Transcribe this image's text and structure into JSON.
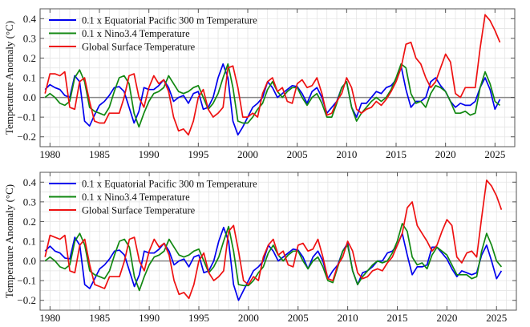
{
  "chart_data": [
    {
      "type": "line",
      "panel": "top",
      "ylabel": "Temperature Anomaly (°C)",
      "xlabel": "",
      "xlim": [
        1979,
        2027
      ],
      "ylim": [
        -0.25,
        0.45
      ],
      "grid": true,
      "legend_placement": "top-left",
      "xticks": [
        {
          "v": 1980,
          "label": "1980"
        },
        {
          "v": 1985,
          "label": "1985"
        },
        {
          "v": 1990,
          "label": "1990"
        },
        {
          "v": 1995,
          "label": "1995"
        },
        {
          "v": 2000,
          "label": "2000"
        },
        {
          "v": 2005,
          "label": "2005"
        },
        {
          "v": 2010,
          "label": "2010"
        },
        {
          "v": 2015,
          "label": "2015"
        },
        {
          "v": 2020,
          "label": "2020"
        },
        {
          "v": 2025,
          "label": "2025"
        }
      ],
      "yticks": [
        {
          "v": 0.4,
          "label": "0.4"
        },
        {
          "v": 0.3,
          "label": "0.3"
        },
        {
          "v": 0.2,
          "label": "0.2"
        },
        {
          "v": 0.1,
          "label": "0.1"
        },
        {
          "v": 0.0,
          "label": "0.0"
        },
        {
          "v": -0.1,
          "label": "−0.1"
        },
        {
          "v": -0.2,
          "label": "−0.2"
        }
      ],
      "x_start": 1979.5,
      "x_step": 0.5,
      "series": [
        {
          "name": "0.1 x Equatorial Pacific 300 m Temperature",
          "color": "#0000ee",
          "values": [
            0.04,
            0.065,
            0.05,
            0.04,
            0.01,
            0.0,
            0.11,
            0.08,
            -0.12,
            -0.145,
            -0.09,
            -0.04,
            -0.02,
            0.01,
            0.05,
            0.055,
            0.03,
            -0.05,
            -0.13,
            -0.07,
            0.05,
            0.04,
            0.04,
            0.06,
            0.09,
            0.05,
            -0.02,
            0.0,
            0.01,
            -0.03,
            0.02,
            0.03,
            -0.06,
            -0.05,
            0.0,
            0.1,
            0.17,
            0.1,
            -0.12,
            -0.19,
            -0.15,
            -0.1,
            -0.05,
            -0.03,
            0.0,
            0.08,
            0.05,
            0.0,
            0.02,
            0.04,
            0.06,
            0.055,
            0.02,
            -0.03,
            0.03,
            0.05,
            0.0,
            -0.08,
            -0.05,
            -0.02,
            0.05,
            0.08,
            -0.05,
            -0.1,
            -0.03,
            -0.03,
            0.0,
            0.03,
            0.02,
            0.05,
            0.06,
            0.09,
            0.16,
            0.04,
            -0.05,
            -0.02,
            -0.02,
            0.0,
            0.08,
            0.1,
            0.06,
            0.03,
            -0.02,
            -0.05,
            -0.03,
            -0.04,
            -0.04,
            -0.02,
            0.05,
            0.1,
            0.04,
            -0.06,
            -0.01
          ]
        },
        {
          "name": "0.1 x Nino3.4 Temperature",
          "color": "#118811",
          "values": [
            0.0,
            0.02,
            0.0,
            -0.03,
            -0.04,
            -0.02,
            0.1,
            0.14,
            0.08,
            -0.05,
            -0.07,
            -0.08,
            -0.09,
            -0.05,
            0.03,
            0.1,
            0.11,
            0.07,
            -0.08,
            -0.15,
            -0.08,
            -0.02,
            0.02,
            0.03,
            0.05,
            0.11,
            0.07,
            0.03,
            0.02,
            0.03,
            0.05,
            0.06,
            0.0,
            -0.06,
            -0.03,
            0.02,
            0.1,
            0.17,
            0.05,
            -0.12,
            -0.13,
            -0.13,
            -0.1,
            -0.06,
            -0.03,
            0.04,
            0.08,
            0.03,
            0.0,
            0.03,
            0.05,
            0.05,
            0.0,
            -0.04,
            0.0,
            0.02,
            -0.03,
            -0.1,
            -0.1,
            -0.03,
            0.05,
            0.08,
            -0.05,
            -0.12,
            -0.08,
            -0.05,
            -0.02,
            0.0,
            -0.02,
            0.0,
            0.04,
            0.1,
            0.17,
            0.15,
            0.02,
            -0.03,
            -0.02,
            -0.05,
            0.02,
            0.06,
            0.05,
            0.03,
            -0.02,
            -0.08,
            -0.08,
            -0.07,
            -0.09,
            -0.08,
            0.05,
            0.13,
            0.07,
            -0.02,
            -0.04
          ]
        },
        {
          "name": "Global Surface Temperature",
          "color": "#ee1111",
          "values": [
            0.02,
            0.12,
            0.12,
            0.11,
            0.13,
            -0.05,
            -0.06,
            0.08,
            0.1,
            -0.02,
            -0.12,
            -0.13,
            -0.13,
            -0.08,
            -0.08,
            -0.08,
            0.0,
            0.11,
            0.12,
            0.0,
            -0.05,
            0.05,
            0.11,
            0.07,
            0.09,
            0.03,
            -0.1,
            -0.17,
            -0.16,
            -0.19,
            -0.12,
            0.0,
            0.04,
            -0.06,
            -0.1,
            -0.08,
            -0.05,
            0.15,
            0.16,
            0.05,
            -0.1,
            -0.1,
            -0.08,
            -0.1,
            0.02,
            0.08,
            0.1,
            0.03,
            0.05,
            -0.02,
            -0.03,
            0.07,
            0.09,
            0.05,
            0.06,
            0.1,
            0.02,
            -0.09,
            -0.08,
            -0.02,
            0.02,
            0.1,
            0.05,
            -0.06,
            -0.08,
            -0.06,
            -0.05,
            -0.02,
            -0.04,
            -0.01,
            0.03,
            0.08,
            0.15,
            0.27,
            0.28,
            0.2,
            0.17,
            0.1,
            0.05,
            0.08,
            0.15,
            0.22,
            0.18,
            0.02,
            0.0,
            0.05,
            0.05,
            0.05,
            0.25,
            0.42,
            0.39,
            0.34,
            0.28
          ]
        }
      ]
    },
    {
      "type": "line",
      "panel": "bottom",
      "ylabel": "Temperature Anomaly (°C)",
      "xlabel": "",
      "xlim": [
        1979,
        2027
      ],
      "ylim": [
        -0.25,
        0.45
      ],
      "grid": true,
      "legend_placement": "top-left",
      "xticks": [
        {
          "v": 1980,
          "label": "1980"
        },
        {
          "v": 1985,
          "label": "1985"
        },
        {
          "v": 1990,
          "label": "1990"
        },
        {
          "v": 1995,
          "label": "1995"
        },
        {
          "v": 2000,
          "label": "2000"
        },
        {
          "v": 2005,
          "label": "2005"
        },
        {
          "v": 2010,
          "label": "2010"
        },
        {
          "v": 2015,
          "label": "2015"
        },
        {
          "v": 2020,
          "label": "2020"
        },
        {
          "v": 2025,
          "label": "2025"
        }
      ],
      "yticks": [
        {
          "v": 0.4,
          "label": "0.4"
        },
        {
          "v": 0.3,
          "label": "0.3"
        },
        {
          "v": 0.2,
          "label": "0.2"
        },
        {
          "v": 0.1,
          "label": "0.1"
        },
        {
          "v": 0.0,
          "label": "0.0"
        },
        {
          "v": -0.1,
          "label": "−0.1"
        },
        {
          "v": -0.2,
          "label": "−0.2"
        }
      ],
      "x_start": 1979.5,
      "x_step": 0.5,
      "series": [
        {
          "name": "0.1 x Equatorial Pacific 300 m Temperature",
          "color": "#0000ee",
          "values": [
            0.05,
            0.075,
            0.05,
            0.04,
            0.015,
            0.01,
            0.12,
            0.08,
            -0.12,
            -0.14,
            -0.09,
            -0.04,
            -0.02,
            0.01,
            0.05,
            0.055,
            0.03,
            -0.05,
            -0.13,
            -0.07,
            0.05,
            0.04,
            0.04,
            0.06,
            0.09,
            0.05,
            -0.02,
            0.0,
            0.01,
            -0.03,
            0.02,
            0.03,
            -0.06,
            -0.05,
            0.0,
            0.1,
            0.17,
            0.1,
            -0.12,
            -0.2,
            -0.15,
            -0.1,
            -0.05,
            -0.03,
            0.0,
            0.08,
            0.05,
            0.0,
            0.02,
            0.04,
            0.06,
            0.055,
            0.02,
            -0.04,
            0.02,
            0.05,
            0.0,
            -0.09,
            -0.05,
            -0.02,
            0.05,
            0.09,
            -0.05,
            -0.12,
            -0.06,
            -0.05,
            -0.03,
            0.0,
            0.0,
            0.04,
            0.05,
            0.08,
            0.14,
            0.03,
            -0.07,
            -0.03,
            -0.03,
            -0.02,
            0.07,
            0.07,
            0.04,
            0.01,
            -0.04,
            -0.08,
            -0.05,
            -0.06,
            -0.07,
            -0.06,
            0.03,
            0.08,
            0.0,
            -0.09,
            -0.05
          ]
        },
        {
          "name": "0.1 x Nino3.4 Temperature",
          "color": "#118811",
          "values": [
            0.0,
            0.02,
            0.0,
            -0.03,
            -0.04,
            -0.02,
            0.1,
            0.14,
            0.08,
            -0.05,
            -0.07,
            -0.08,
            -0.09,
            -0.05,
            0.03,
            0.1,
            0.11,
            0.07,
            -0.08,
            -0.15,
            -0.08,
            -0.02,
            0.02,
            0.03,
            0.05,
            0.11,
            0.07,
            0.03,
            0.02,
            0.03,
            0.05,
            0.06,
            0.0,
            -0.06,
            -0.03,
            0.02,
            0.1,
            0.175,
            0.05,
            -0.12,
            -0.125,
            -0.125,
            -0.1,
            -0.06,
            -0.03,
            0.04,
            0.08,
            0.03,
            0.0,
            0.03,
            0.05,
            0.05,
            0.0,
            -0.04,
            0.0,
            0.02,
            -0.03,
            -0.1,
            -0.11,
            -0.03,
            0.05,
            0.08,
            -0.05,
            -0.12,
            -0.08,
            -0.05,
            -0.02,
            0.0,
            -0.01,
            0.0,
            0.04,
            0.1,
            0.19,
            0.15,
            0.02,
            -0.02,
            -0.01,
            -0.04,
            0.03,
            0.07,
            0.05,
            0.03,
            -0.02,
            -0.07,
            -0.07,
            -0.07,
            -0.09,
            -0.08,
            0.05,
            0.14,
            0.08,
            0.0,
            -0.03
          ]
        },
        {
          "name": "Global Surface Temperature",
          "color": "#ee1111",
          "values": [
            0.02,
            0.13,
            0.12,
            0.11,
            0.13,
            -0.05,
            -0.06,
            0.08,
            0.11,
            -0.02,
            -0.12,
            -0.13,
            -0.14,
            -0.08,
            -0.08,
            -0.08,
            0.0,
            0.11,
            0.12,
            0.0,
            -0.05,
            0.05,
            0.11,
            0.07,
            0.09,
            0.03,
            -0.1,
            -0.17,
            -0.16,
            -0.19,
            -0.12,
            0.0,
            0.04,
            -0.06,
            -0.1,
            -0.08,
            -0.05,
            0.15,
            0.18,
            0.05,
            -0.1,
            -0.12,
            -0.08,
            -0.1,
            0.02,
            0.08,
            0.11,
            0.03,
            0.05,
            -0.02,
            -0.03,
            0.08,
            0.09,
            0.05,
            0.06,
            0.11,
            0.02,
            -0.09,
            -0.1,
            -0.02,
            0.02,
            0.1,
            0.05,
            -0.06,
            -0.09,
            -0.08,
            -0.05,
            -0.04,
            -0.05,
            -0.01,
            0.02,
            0.08,
            0.14,
            0.27,
            0.3,
            0.18,
            0.14,
            0.1,
            0.05,
            0.08,
            0.15,
            0.21,
            0.18,
            0.02,
            -0.01,
            0.04,
            0.05,
            0.02,
            0.22,
            0.41,
            0.38,
            0.33,
            0.26
          ]
        }
      ]
    }
  ]
}
